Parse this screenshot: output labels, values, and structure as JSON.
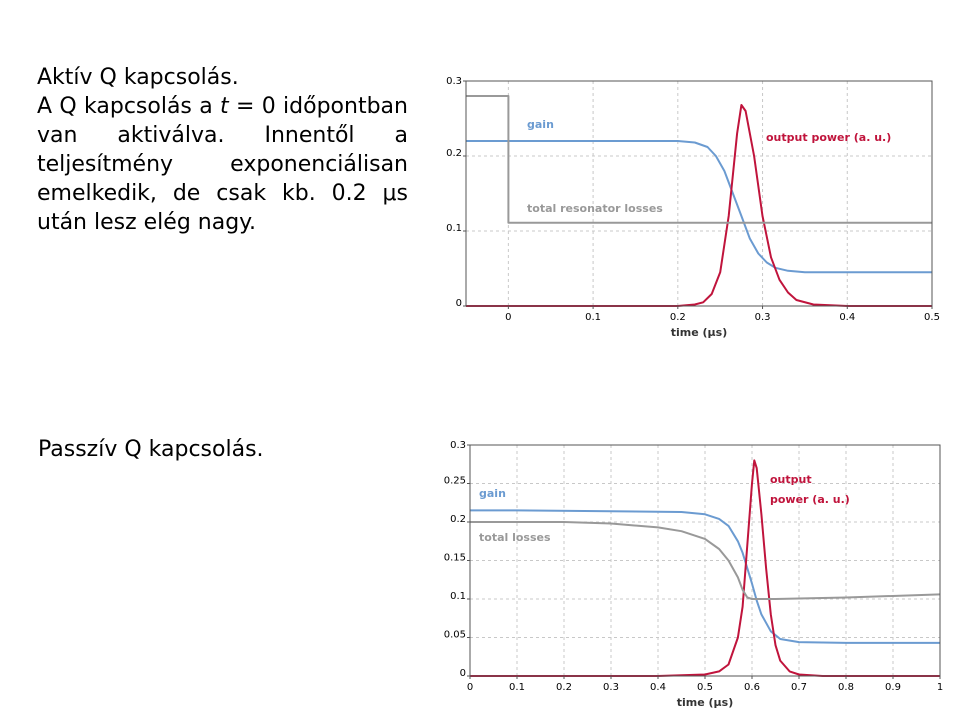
{
  "slide": {
    "active": {
      "title": "Aktív Q kapcsolás.",
      "text_before": "A Q kapcsolás a ",
      "text_var": "t",
      "text_after": " = 0 időpontban van aktiválva. Innentől a teljesítmény exponenciálisan emelkedik, de csak kb. 0.2 μs után lesz elég nagy."
    },
    "passive": {
      "title": "Passzív Q kapcsolás."
    }
  },
  "chart_data": [
    {
      "type": "line",
      "xlabel": "time (μs)",
      "ylabel": "",
      "xlim": [
        -0.05,
        0.5
      ],
      "ylim": [
        0,
        0.3
      ],
      "xticks": [
        0,
        0.1,
        0.2,
        0.3,
        0.4,
        0.5
      ],
      "yticks": [
        0,
        0.1,
        0.2,
        0.3
      ],
      "xtick_labels": [
        "0",
        "0.1",
        "0.2",
        "0.3",
        "0.4",
        "0.5"
      ],
      "ytick_labels": [
        "0",
        "0.1",
        "0.2",
        "0.3"
      ],
      "grid": true,
      "series": [
        {
          "name": "gain",
          "color": "#6b9bd1",
          "x": [
            -0.05,
            0.0,
            0.1,
            0.2,
            0.22,
            0.235,
            0.245,
            0.255,
            0.265,
            0.275,
            0.285,
            0.295,
            0.305,
            0.315,
            0.33,
            0.35,
            0.4,
            0.5
          ],
          "y": [
            0.22,
            0.22,
            0.22,
            0.22,
            0.218,
            0.212,
            0.2,
            0.18,
            0.15,
            0.12,
            0.09,
            0.07,
            0.058,
            0.051,
            0.047,
            0.045,
            0.045,
            0.045
          ]
        },
        {
          "name": "output power (a. u.)",
          "color": "#c0143c",
          "x": [
            -0.05,
            0.0,
            0.1,
            0.2,
            0.22,
            0.23,
            0.24,
            0.25,
            0.26,
            0.27,
            0.275,
            0.28,
            0.29,
            0.3,
            0.31,
            0.32,
            0.33,
            0.34,
            0.36,
            0.4,
            0.5
          ],
          "y": [
            0,
            0,
            0,
            0,
            0.002,
            0.005,
            0.016,
            0.045,
            0.12,
            0.23,
            0.268,
            0.26,
            0.2,
            0.12,
            0.065,
            0.035,
            0.018,
            0.008,
            0.002,
            0,
            0
          ]
        },
        {
          "name": "total resonator losses",
          "color": "#999999",
          "x": [
            -0.05,
            0.0,
            0.0,
            0.5
          ],
          "y": [
            0.28,
            0.28,
            0.111,
            0.111
          ]
        }
      ]
    },
    {
      "type": "line",
      "xlabel": "time (μs)",
      "ylabel": "",
      "xlim": [
        0,
        1
      ],
      "ylim": [
        0,
        0.3
      ],
      "xticks": [
        0,
        0.1,
        0.2,
        0.3,
        0.4,
        0.5,
        0.6,
        0.7,
        0.8,
        0.9,
        1
      ],
      "yticks": [
        0,
        0.05,
        0.1,
        0.15,
        0.2,
        0.25,
        0.3
      ],
      "xtick_labels": [
        "0",
        "0.1",
        "0.2",
        "0.3",
        "0.4",
        "0.5",
        "0.6",
        "0.7",
        "0.8",
        "0.9",
        "1"
      ],
      "ytick_labels": [
        "0",
        "0.05",
        "0.1",
        "0.15",
        "0.2",
        "0.25",
        "0.3"
      ],
      "grid": true,
      "series": [
        {
          "name": "gain",
          "color": "#6b9bd1",
          "x": [
            0,
            0.1,
            0.3,
            0.45,
            0.5,
            0.53,
            0.55,
            0.57,
            0.58,
            0.59,
            0.6,
            0.61,
            0.62,
            0.64,
            0.66,
            0.7,
            0.8,
            1.0
          ],
          "y": [
            0.215,
            0.215,
            0.214,
            0.213,
            0.21,
            0.204,
            0.195,
            0.175,
            0.16,
            0.14,
            0.12,
            0.098,
            0.08,
            0.058,
            0.048,
            0.044,
            0.043,
            0.043
          ]
        },
        {
          "name": "output power (a. u.)",
          "color": "#c0143c",
          "x": [
            0,
            0.4,
            0.5,
            0.53,
            0.55,
            0.57,
            0.58,
            0.59,
            0.6,
            0.605,
            0.61,
            0.62,
            0.63,
            0.64,
            0.65,
            0.66,
            0.68,
            0.7,
            0.75,
            1.0
          ],
          "y": [
            0,
            0,
            0.002,
            0.006,
            0.015,
            0.05,
            0.09,
            0.17,
            0.25,
            0.28,
            0.27,
            0.21,
            0.14,
            0.08,
            0.04,
            0.02,
            0.006,
            0.002,
            0,
            0
          ]
        },
        {
          "name": "total losses",
          "color": "#999999",
          "x": [
            0,
            0.2,
            0.3,
            0.4,
            0.45,
            0.5,
            0.53,
            0.55,
            0.57,
            0.58,
            0.59,
            0.6,
            0.62,
            0.65,
            0.8,
            1.0
          ],
          "y": [
            0.2,
            0.2,
            0.198,
            0.193,
            0.188,
            0.178,
            0.165,
            0.15,
            0.128,
            0.112,
            0.102,
            0.1,
            0.1,
            0.1,
            0.102,
            0.106
          ]
        }
      ]
    }
  ],
  "labels": {
    "c1_gain": "gain",
    "c1_output": "output power (a. u.)",
    "c1_losses": "total resonator losses",
    "c2_gain": "gain",
    "c2_output_l1": "output",
    "c2_output_l2": "power (a. u.)",
    "c2_losses": "total losses"
  }
}
